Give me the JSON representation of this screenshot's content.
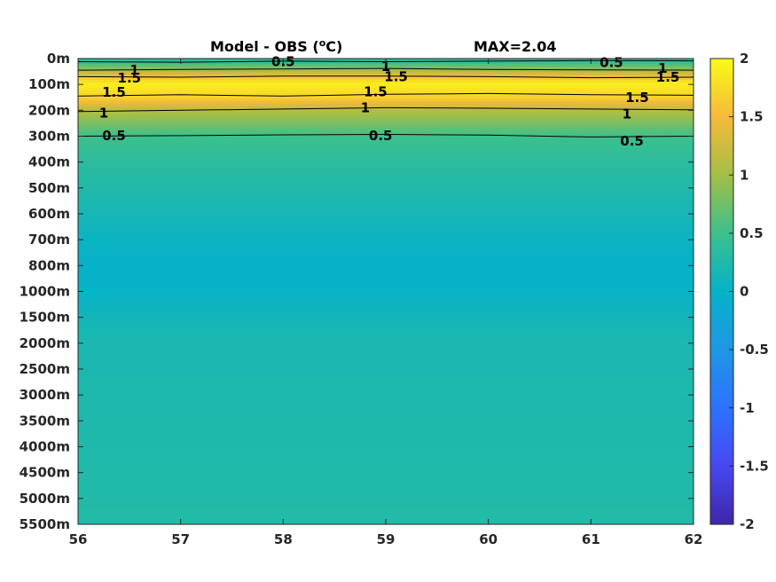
{
  "chart_data": {
    "type": "heatmap",
    "title_left": "Model - OBS (",
    "title_unit_sup": "o",
    "title_unit_end": "C)",
    "title_right": "MAX=2.04",
    "x_ticks": [
      "56",
      "57",
      "58",
      "59",
      "60",
      "61",
      "62"
    ],
    "xlim": [
      56,
      62
    ],
    "y_ticks": [
      "0m",
      "100m",
      "200m",
      "300m",
      "400m",
      "500m",
      "600m",
      "700m",
      "800m",
      "1000m",
      "1500m",
      "2000m",
      "2500m",
      "3000m",
      "3500m",
      "4000m",
      "4500m",
      "5000m",
      "5500m"
    ],
    "depth_levels_m": [
      0,
      100,
      200,
      300,
      400,
      500,
      600,
      700,
      800,
      1000,
      1500,
      2000,
      2500,
      3000,
      3500,
      4000,
      4500,
      5000,
      5500
    ],
    "colorbar": {
      "ticks": [
        "2",
        "1.5",
        "1",
        "0.5",
        "0",
        "-0.5",
        "-1",
        "-1.5",
        "-2"
      ],
      "clim": [
        -2,
        2
      ],
      "colormap": "parula"
    },
    "depth_profile": {
      "depth_m": [
        0,
        20,
        50,
        80,
        100,
        150,
        200,
        250,
        300,
        400,
        500,
        600,
        700,
        800,
        1000,
        1500,
        2000,
        3000,
        4000,
        5000,
        5500
      ],
      "value": [
        0.3,
        0.5,
        1.1,
        1.7,
        1.9,
        1.7,
        1.1,
        0.8,
        0.5,
        0.35,
        0.25,
        0.15,
        0.05,
        0.0,
        0.02,
        0.12,
        0.2,
        0.22,
        0.24,
        0.26,
        0.28
      ]
    },
    "contours": [
      {
        "level": 0.5,
        "depth_m": [
          12,
          14,
          10,
          12,
          10,
          8,
          9
        ]
      },
      {
        "level": 1,
        "depth_m": [
          45,
          42,
          40,
          38,
          42,
          44,
          45
        ]
      },
      {
        "level": 1.5,
        "depth_m": [
          70,
          72,
          68,
          68,
          70,
          74,
          72
        ]
      },
      {
        "level": 1.5,
        "depth_m": [
          145,
          140,
          145,
          138,
          135,
          140,
          142
        ]
      },
      {
        "level": 1,
        "depth_m": [
          205,
          200,
          195,
          190,
          192,
          195,
          198
        ]
      },
      {
        "level": 0.5,
        "depth_m": [
          300,
          298,
          295,
          293,
          296,
          303,
          300
        ]
      }
    ],
    "contour_labels": [
      {
        "text": "0.5",
        "x": 58.0,
        "depth_m": 12
      },
      {
        "text": "0.5",
        "x": 61.2,
        "depth_m": 15
      },
      {
        "text": "1",
        "x": 56.55,
        "depth_m": 45
      },
      {
        "text": "1",
        "x": 59.0,
        "depth_m": 30
      },
      {
        "text": "1",
        "x": 61.7,
        "depth_m": 38
      },
      {
        "text": "1.5",
        "x": 56.5,
        "depth_m": 75
      },
      {
        "text": "1.5",
        "x": 59.1,
        "depth_m": 70
      },
      {
        "text": "1.5",
        "x": 61.75,
        "depth_m": 72
      },
      {
        "text": "1.5",
        "x": 56.35,
        "depth_m": 130
      },
      {
        "text": "1.5",
        "x": 58.9,
        "depth_m": 128
      },
      {
        "text": "1.5",
        "x": 61.45,
        "depth_m": 150
      },
      {
        "text": "1",
        "x": 56.25,
        "depth_m": 210
      },
      {
        "text": "1",
        "x": 58.8,
        "depth_m": 190
      },
      {
        "text": "1",
        "x": 61.35,
        "depth_m": 215
      },
      {
        "text": "0.5",
        "x": 56.35,
        "depth_m": 298
      },
      {
        "text": "0.5",
        "x": 58.95,
        "depth_m": 298
      },
      {
        "text": "0.5",
        "x": 61.4,
        "depth_m": 318
      }
    ]
  }
}
